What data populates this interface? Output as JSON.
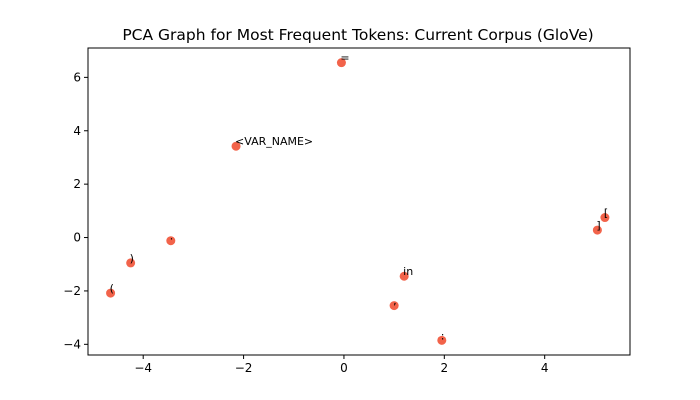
{
  "chart_data": {
    "type": "scatter",
    "title": "PCA Graph for Most Frequent Tokens: Current Corpus (GloVe)",
    "xlabel": "",
    "ylabel": "",
    "xlim": [
      -5.1,
      5.7
    ],
    "ylim": [
      -4.4,
      7.1
    ],
    "xticks": [
      -4,
      -2,
      0,
      2,
      4
    ],
    "yticks": [
      -4,
      -2,
      0,
      2,
      4,
      6
    ],
    "grid": false,
    "point_color": "#f2634a",
    "points": [
      {
        "label": "=",
        "x": -0.05,
        "y": 6.55
      },
      {
        "label": "<VAR_NAME>",
        "x": -2.15,
        "y": 3.42
      },
      {
        "label": "[",
        "x": 5.2,
        "y": 0.75
      },
      {
        "label": "]",
        "x": 5.05,
        "y": 0.28
      },
      {
        "label": ".",
        "x": -3.45,
        "y": -0.12
      },
      {
        "label": ")",
        "x": -4.25,
        "y": -0.95
      },
      {
        "label": "(",
        "x": -4.65,
        "y": -2.08
      },
      {
        "label": "in",
        "x": 1.2,
        "y": -1.45
      },
      {
        "label": ",",
        "x": 1.0,
        "y": -2.55
      },
      {
        "label": ":",
        "x": 1.95,
        "y": -3.85
      }
    ]
  }
}
